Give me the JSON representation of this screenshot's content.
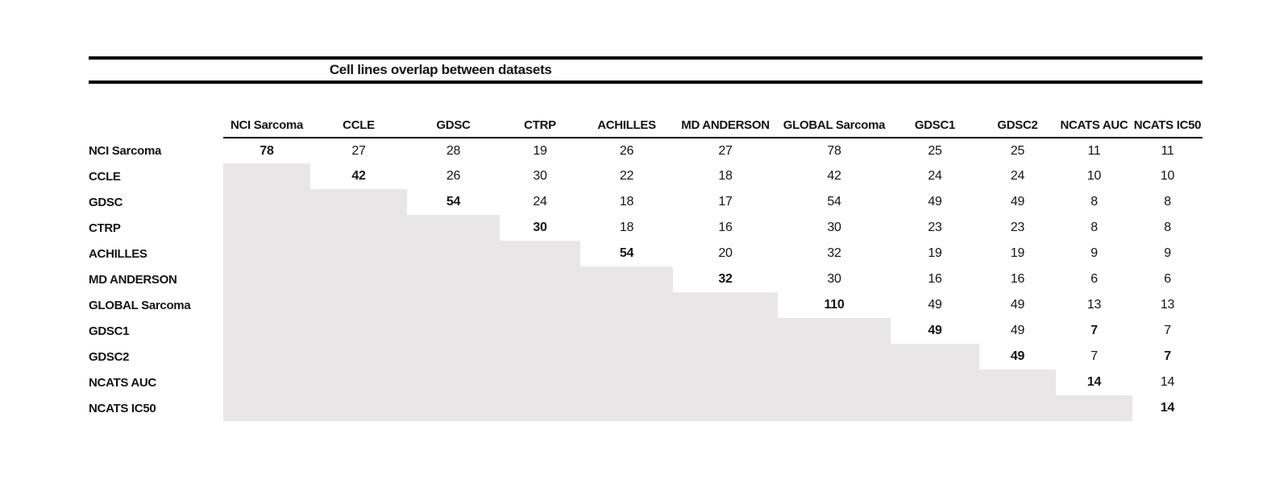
{
  "figure": {
    "title": "Cell lines overlap between datasets"
  },
  "chart_data": {
    "type": "table",
    "title": "Cell lines overlap between datasets",
    "columns": [
      "NCI Sarcoma",
      "CCLE",
      "GDSC",
      "CTRP",
      "ACHILLES",
      "MD ANDERSON",
      "GLOBAL Sarcoma",
      "GDSC1",
      "GDSC2",
      "NCATS AUC",
      "NCATS IC50"
    ],
    "rows": [
      {
        "label": "NCI Sarcoma",
        "values": [
          78,
          27,
          28,
          19,
          26,
          27,
          78,
          25,
          25,
          11,
          11
        ]
      },
      {
        "label": "CCLE",
        "values": [
          null,
          42,
          26,
          30,
          22,
          18,
          42,
          24,
          24,
          10,
          10
        ]
      },
      {
        "label": "GDSC",
        "values": [
          null,
          null,
          54,
          24,
          18,
          17,
          54,
          49,
          49,
          8,
          8
        ]
      },
      {
        "label": "CTRP",
        "values": [
          null,
          null,
          null,
          30,
          18,
          16,
          30,
          23,
          23,
          8,
          8
        ]
      },
      {
        "label": "ACHILLES",
        "values": [
          null,
          null,
          null,
          null,
          54,
          20,
          32,
          19,
          19,
          9,
          9
        ]
      },
      {
        "label": "MD ANDERSON",
        "values": [
          null,
          null,
          null,
          null,
          null,
          32,
          30,
          16,
          16,
          6,
          6
        ]
      },
      {
        "label": "GLOBAL Sarcoma",
        "values": [
          null,
          null,
          null,
          null,
          null,
          null,
          110,
          49,
          49,
          13,
          13
        ]
      },
      {
        "label": "GDSC1",
        "values": [
          null,
          null,
          null,
          null,
          null,
          null,
          null,
          49,
          49,
          7,
          7
        ]
      },
      {
        "label": "GDSC2",
        "values": [
          null,
          null,
          null,
          null,
          null,
          null,
          null,
          null,
          49,
          7,
          7
        ]
      },
      {
        "label": "NCATS AUC",
        "values": [
          null,
          null,
          null,
          null,
          null,
          null,
          null,
          null,
          null,
          14,
          14
        ]
      },
      {
        "label": "NCATS IC50",
        "values": [
          null,
          null,
          null,
          null,
          null,
          null,
          null,
          null,
          null,
          null,
          14
        ]
      }
    ],
    "bold_cells": [
      [
        0,
        0
      ],
      [
        1,
        1
      ],
      [
        2,
        2
      ],
      [
        3,
        3
      ],
      [
        4,
        4
      ],
      [
        5,
        5
      ],
      [
        6,
        6
      ],
      [
        7,
        7
      ],
      [
        8,
        8
      ],
      [
        9,
        9
      ],
      [
        10,
        10
      ],
      [
        7,
        9
      ],
      [
        8,
        10
      ]
    ],
    "empty_cell_fill": "#e8e6e6",
    "layout_hints": {
      "lower_triangle": "gray filled, no values",
      "header_rule": "single rule under column headers spanning data columns",
      "title_rules": "thick rules above and below the title",
      "legend_position": "none",
      "grid": "off"
    }
  }
}
